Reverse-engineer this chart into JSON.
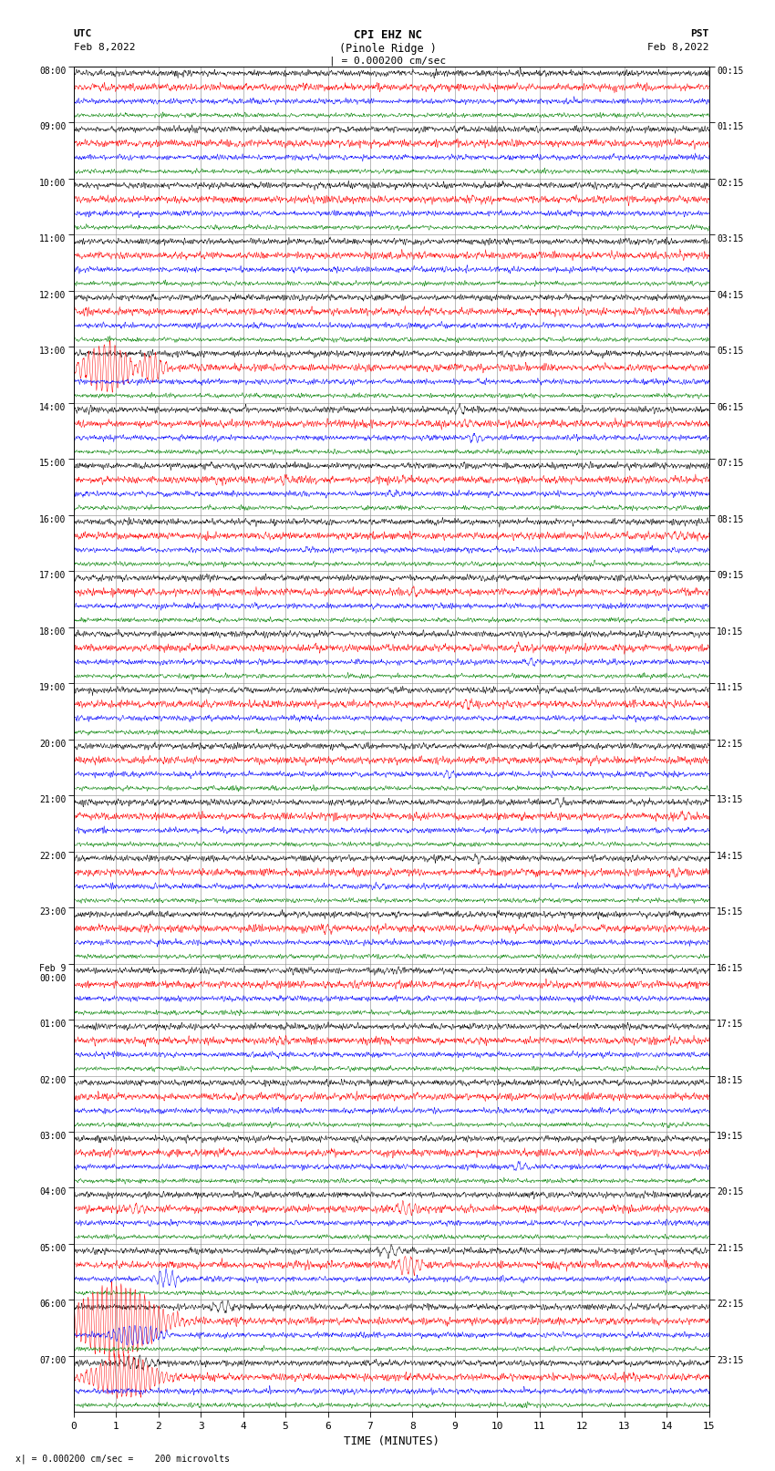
{
  "title_line1": "CPI EHZ NC",
  "title_line2": "(Pinole Ridge )",
  "scale_text": "| = 0.000200 cm/sec",
  "bottom_note": "x| = 0.000200 cm/sec =    200 microvolts",
  "left_label_top": "UTC",
  "left_label_date": "Feb 8,2022",
  "right_label_top": "PST",
  "right_label_date": "Feb 8,2022",
  "xlabel": "TIME (MINUTES)",
  "bg_color": "#ffffff",
  "trace_colors": [
    "black",
    "red",
    "blue",
    "green"
  ],
  "n_hours": 24,
  "traces_per_hour": 4,
  "minutes_per_row": 15,
  "utc_labels": [
    "08:00",
    "09:00",
    "10:00",
    "11:00",
    "12:00",
    "13:00",
    "14:00",
    "15:00",
    "16:00",
    "17:00",
    "18:00",
    "19:00",
    "20:00",
    "21:00",
    "22:00",
    "23:00",
    "Feb 9\n00:00",
    "01:00",
    "02:00",
    "03:00",
    "04:00",
    "05:00",
    "06:00",
    "07:00"
  ],
  "pst_labels": [
    "00:15",
    "01:15",
    "02:15",
    "03:15",
    "04:15",
    "05:15",
    "06:15",
    "07:15",
    "08:15",
    "09:15",
    "10:15",
    "11:15",
    "12:15",
    "13:15",
    "14:15",
    "15:15",
    "16:15",
    "17:15",
    "18:15",
    "19:15",
    "20:15",
    "21:15",
    "22:15",
    "23:15"
  ],
  "grid_color": "#888888",
  "noise_amps": {
    "black": 0.25,
    "red": 0.3,
    "blue": 0.22,
    "green": 0.18
  },
  "trace_scale": 0.38,
  "lw": 0.35,
  "samples_per_minute": 150,
  "events": [
    {
      "hour": 5,
      "trace": 1,
      "minute": 0.8,
      "amp": 4.5,
      "dur": 1.5,
      "freq": 8
    },
    {
      "hour": 5,
      "trace": 1,
      "minute": 1.8,
      "amp": 3.0,
      "dur": 0.8,
      "freq": 8
    },
    {
      "hour": 6,
      "trace": 0,
      "minute": 9.1,
      "amp": 0.6,
      "dur": 0.4,
      "freq": 6
    },
    {
      "hour": 6,
      "trace": 1,
      "minute": 9.3,
      "amp": 0.8,
      "dur": 0.4,
      "freq": 7
    },
    {
      "hour": 6,
      "trace": 2,
      "minute": 9.5,
      "amp": 0.7,
      "dur": 0.4,
      "freq": 7
    },
    {
      "hour": 7,
      "trace": 1,
      "minute": 5.0,
      "amp": 0.7,
      "dur": 0.5,
      "freq": 6
    },
    {
      "hour": 7,
      "trace": 2,
      "minute": 7.5,
      "amp": 0.6,
      "dur": 0.5,
      "freq": 6
    },
    {
      "hour": 8,
      "trace": 1,
      "minute": 14.3,
      "amp": 0.8,
      "dur": 0.5,
      "freq": 6
    },
    {
      "hour": 8,
      "trace": 2,
      "minute": 5.5,
      "amp": 0.6,
      "dur": 0.4,
      "freq": 6
    },
    {
      "hour": 9,
      "trace": 1,
      "minute": 8.0,
      "amp": 0.7,
      "dur": 0.5,
      "freq": 6
    },
    {
      "hour": 10,
      "trace": 1,
      "minute": 10.5,
      "amp": 0.7,
      "dur": 0.5,
      "freq": 6
    },
    {
      "hour": 10,
      "trace": 2,
      "minute": 10.8,
      "amp": 0.6,
      "dur": 0.4,
      "freq": 6
    },
    {
      "hour": 11,
      "trace": 1,
      "minute": 9.3,
      "amp": 0.7,
      "dur": 0.4,
      "freq": 7
    },
    {
      "hour": 12,
      "trace": 2,
      "minute": 8.8,
      "amp": 0.7,
      "dur": 0.4,
      "freq": 7
    },
    {
      "hour": 13,
      "trace": 0,
      "minute": 11.5,
      "amp": 0.6,
      "dur": 0.4,
      "freq": 6
    },
    {
      "hour": 13,
      "trace": 1,
      "minute": 14.5,
      "amp": 0.7,
      "dur": 0.4,
      "freq": 6
    },
    {
      "hour": 14,
      "trace": 0,
      "minute": 9.5,
      "amp": 0.6,
      "dur": 0.4,
      "freq": 6
    },
    {
      "hour": 14,
      "trace": 2,
      "minute": 7.2,
      "amp": 0.6,
      "dur": 0.5,
      "freq": 6
    },
    {
      "hour": 14,
      "trace": 1,
      "minute": 14.2,
      "amp": 0.7,
      "dur": 0.4,
      "freq": 6
    },
    {
      "hour": 15,
      "trace": 1,
      "minute": 6.0,
      "amp": 0.8,
      "dur": 0.4,
      "freq": 7
    },
    {
      "hour": 17,
      "trace": 1,
      "minute": 5.0,
      "amp": 0.7,
      "dur": 0.4,
      "freq": 7
    },
    {
      "hour": 19,
      "trace": 2,
      "minute": 10.5,
      "amp": 0.8,
      "dur": 0.4,
      "freq": 6
    },
    {
      "hour": 20,
      "trace": 1,
      "minute": 1.5,
      "amp": 1.0,
      "dur": 0.5,
      "freq": 7
    },
    {
      "hour": 20,
      "trace": 1,
      "minute": 7.8,
      "amp": 1.2,
      "dur": 0.6,
      "freq": 7
    },
    {
      "hour": 21,
      "trace": 2,
      "minute": 2.2,
      "amp": 1.5,
      "dur": 0.8,
      "freq": 7
    },
    {
      "hour": 21,
      "trace": 0,
      "minute": 7.5,
      "amp": 1.0,
      "dur": 0.6,
      "freq": 6
    },
    {
      "hour": 21,
      "trace": 1,
      "minute": 7.9,
      "amp": 1.5,
      "dur": 0.8,
      "freq": 7
    },
    {
      "hour": 22,
      "trace": 1,
      "minute": 1.0,
      "amp": 7.0,
      "dur": 2.5,
      "freq": 9
    },
    {
      "hour": 22,
      "trace": 0,
      "minute": 3.5,
      "amp": 1.0,
      "dur": 0.6,
      "freq": 6
    },
    {
      "hour": 22,
      "trace": 2,
      "minute": 1.5,
      "amp": 2.0,
      "dur": 1.5,
      "freq": 8
    },
    {
      "hour": 23,
      "trace": 1,
      "minute": 1.2,
      "amp": 4.0,
      "dur": 2.0,
      "freq": 9
    },
    {
      "hour": 23,
      "trace": 0,
      "minute": 1.5,
      "amp": 1.0,
      "dur": 1.0,
      "freq": 7
    },
    {
      "hour": 24,
      "trace": 1,
      "minute": 8.5,
      "amp": 1.0,
      "dur": 0.6,
      "freq": 7
    },
    {
      "hour": 25,
      "trace": 2,
      "minute": 9.0,
      "amp": 1.0,
      "dur": 0.6,
      "freq": 7
    },
    {
      "hour": 26,
      "trace": 1,
      "minute": 5.5,
      "amp": 1.5,
      "dur": 1.0,
      "freq": 8
    },
    {
      "hour": 27,
      "trace": 3,
      "minute": 12.0,
      "amp": 1.0,
      "dur": 0.6,
      "freq": 7
    },
    {
      "hour": 27,
      "trace": 3,
      "minute": 14.0,
      "amp": 0.8,
      "dur": 0.5,
      "freq": 7
    },
    {
      "hour": 28,
      "trace": 0,
      "minute": 3.5,
      "amp": 0.7,
      "dur": 0.4,
      "freq": 6
    }
  ]
}
